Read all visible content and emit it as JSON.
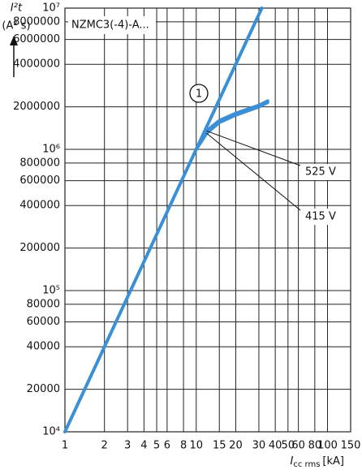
{
  "chart_data": {
    "type": "line",
    "log_x": true,
    "log_y": true,
    "grid": true,
    "note": "NZMC3(-4)-A...",
    "ylabel": {
      "symbol": "I²t",
      "unit": "(A² s)"
    },
    "xlabel": {
      "symbol": "I",
      "subscript": "cc rms",
      "unit": "[kA]"
    },
    "xlim": [
      1,
      150
    ],
    "ylim": [
      10000,
      10000000
    ],
    "xticks": [
      1,
      2,
      3,
      4,
      5,
      6,
      8,
      10,
      15,
      20,
      30,
      40,
      50,
      60,
      80,
      100,
      150
    ],
    "yticks": [
      {
        "value": 10000,
        "label": "10⁴"
      },
      20000,
      40000,
      60000,
      80000,
      {
        "value": 100000,
        "label": "10⁵"
      },
      200000,
      400000,
      600000,
      800000,
      {
        "value": 1000000,
        "label": "10⁶"
      },
      2000000,
      4000000,
      6000000,
      8000000,
      {
        "value": 10000000,
        "label": "10⁷"
      }
    ],
    "series": [
      {
        "name": "1",
        "color": "#3a8fd6",
        "x": [
          1,
          31.6
        ],
        "values": [
          10000,
          10000000
        ]
      },
      {
        "name": "525 V",
        "color": "#3a8fd6",
        "x": [
          10,
          12,
          15,
          20,
          30,
          35
        ],
        "values": [
          1000000,
          1350000,
          1600000,
          1800000,
          2050000,
          2200000
        ]
      },
      {
        "name": "415 V",
        "color": "#3a8fd6",
        "x": [
          10,
          12,
          15,
          20,
          30,
          35
        ],
        "values": [
          1000000,
          1300000,
          1550000,
          1750000,
          2000000,
          2150000
        ]
      }
    ]
  }
}
